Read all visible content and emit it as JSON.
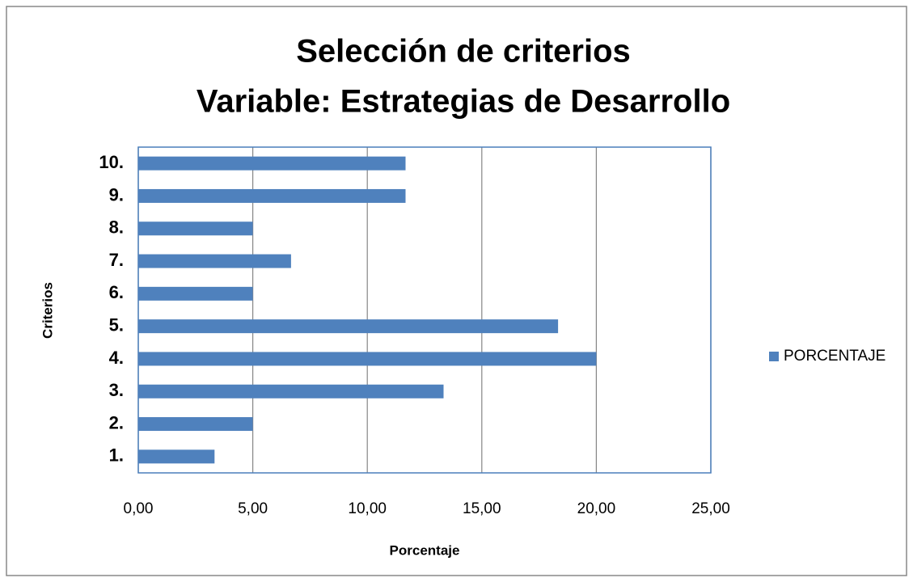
{
  "chart_data": {
    "type": "bar",
    "orientation": "horizontal",
    "title": "Selección de criterios",
    "subtitle": "Variable: Estrategias de Desarrollo",
    "x_label": "Porcentaje",
    "y_label": "Criterios",
    "categories": [
      "1.",
      "2.",
      "3.",
      "4.",
      "5.",
      "6.",
      "7.",
      "8.",
      "9.",
      "10."
    ],
    "series": [
      {
        "name": "PORCENTAJE",
        "color": "#4f81bd",
        "values": [
          3.33,
          5,
          13.33,
          20,
          18.33,
          5,
          6.67,
          5,
          11.67,
          11.67
        ]
      }
    ],
    "xlim": [
      0,
      25
    ],
    "xticks": [
      {
        "value": 0,
        "label": "0,00"
      },
      {
        "value": 5,
        "label": "5,00"
      },
      {
        "value": 10,
        "label": "10,00"
      },
      {
        "value": 15,
        "label": "15,00"
      },
      {
        "value": 20,
        "label": "20,00"
      },
      {
        "value": 25,
        "label": "25,00"
      }
    ],
    "grid": true,
    "legend": "right"
  }
}
